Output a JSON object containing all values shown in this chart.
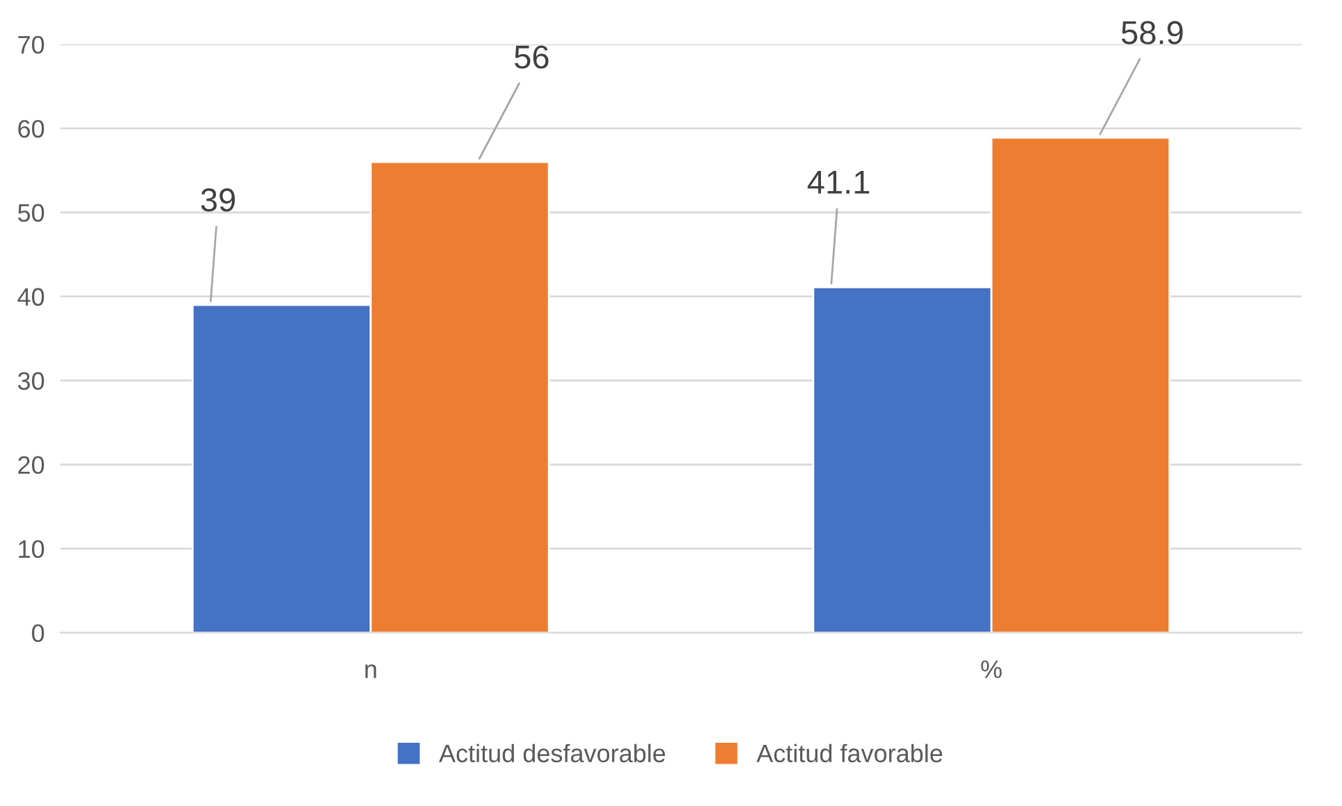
{
  "chart_data": {
    "type": "bar",
    "categories": [
      "n",
      "%"
    ],
    "series": [
      {
        "name": "Actitud desfavorable",
        "color": "#4472c4",
        "values": [
          39,
          41.1
        ]
      },
      {
        "name": "Actitud favorable",
        "color": "#ed7d31",
        "values": [
          56,
          58.9
        ]
      }
    ],
    "ylim": [
      0,
      70
    ],
    "yticks": [
      0,
      10,
      20,
      30,
      40,
      50,
      60,
      70
    ],
    "grid": "y",
    "legend": "bottom",
    "data_labels": true
  }
}
